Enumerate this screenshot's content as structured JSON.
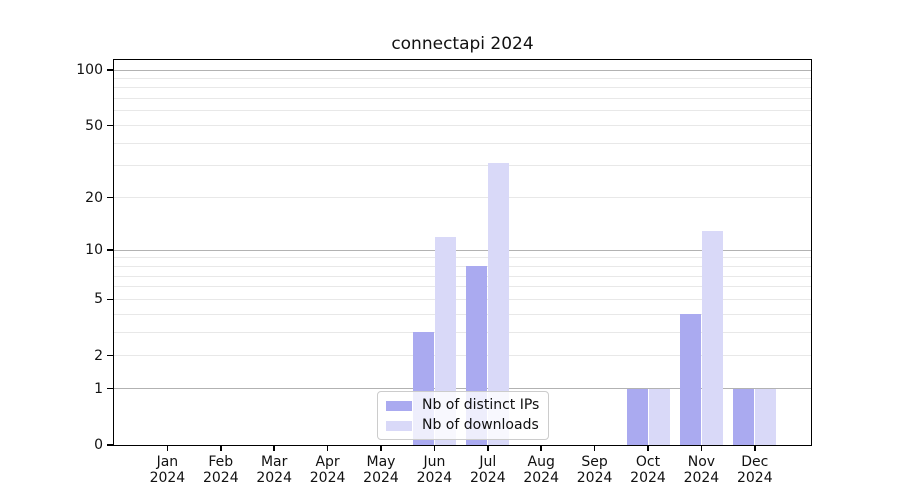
{
  "title": "connectapi 2024",
  "colors": {
    "ips_bar": "#aaaaf0",
    "downloads_bar": "#d9d9f8",
    "grid_major": "#b2b2b2",
    "grid_minor": "#e8e8e8",
    "axis": "#000000",
    "legend_border": "#cccccc"
  },
  "legend": {
    "position": "lower center",
    "items": [
      {
        "label": "Nb of distinct IPs",
        "color_key": "ips_bar"
      },
      {
        "label": "Nb of downloads",
        "color_key": "downloads_bar"
      }
    ]
  },
  "chart_data": {
    "type": "bar",
    "title": "connectapi 2024",
    "xlabel": "",
    "ylabel": "",
    "y_scale": "log1p",
    "ylim": [
      0,
      100
    ],
    "grid": true,
    "categories": [
      "Jan 2024",
      "Feb 2024",
      "Mar 2024",
      "Apr 2024",
      "May 2024",
      "Jun 2024",
      "Jul 2024",
      "Aug 2024",
      "Sep 2024",
      "Oct 2024",
      "Nov 2024",
      "Dec 2024"
    ],
    "series": [
      {
        "name": "Nb of distinct IPs",
        "values": [
          0,
          0,
          0,
          0,
          0,
          3,
          8,
          0,
          0,
          1,
          4,
          1
        ]
      },
      {
        "name": "Nb of downloads",
        "values": [
          0,
          0,
          0,
          0,
          0,
          12,
          31,
          0,
          0,
          1,
          13,
          1
        ]
      }
    ],
    "y_tick_values": [
      0,
      1,
      2,
      5,
      10,
      20,
      50,
      100
    ],
    "y_tick_labels": [
      "0",
      "1",
      "2",
      "5",
      "10",
      "20",
      "50",
      "100"
    ],
    "major_gridline_values": [
      1,
      10,
      100
    ],
    "minor_gridline_values": [
      2,
      3,
      4,
      5,
      6,
      7,
      8,
      9,
      20,
      30,
      40,
      50,
      60,
      70,
      80,
      90
    ]
  }
}
